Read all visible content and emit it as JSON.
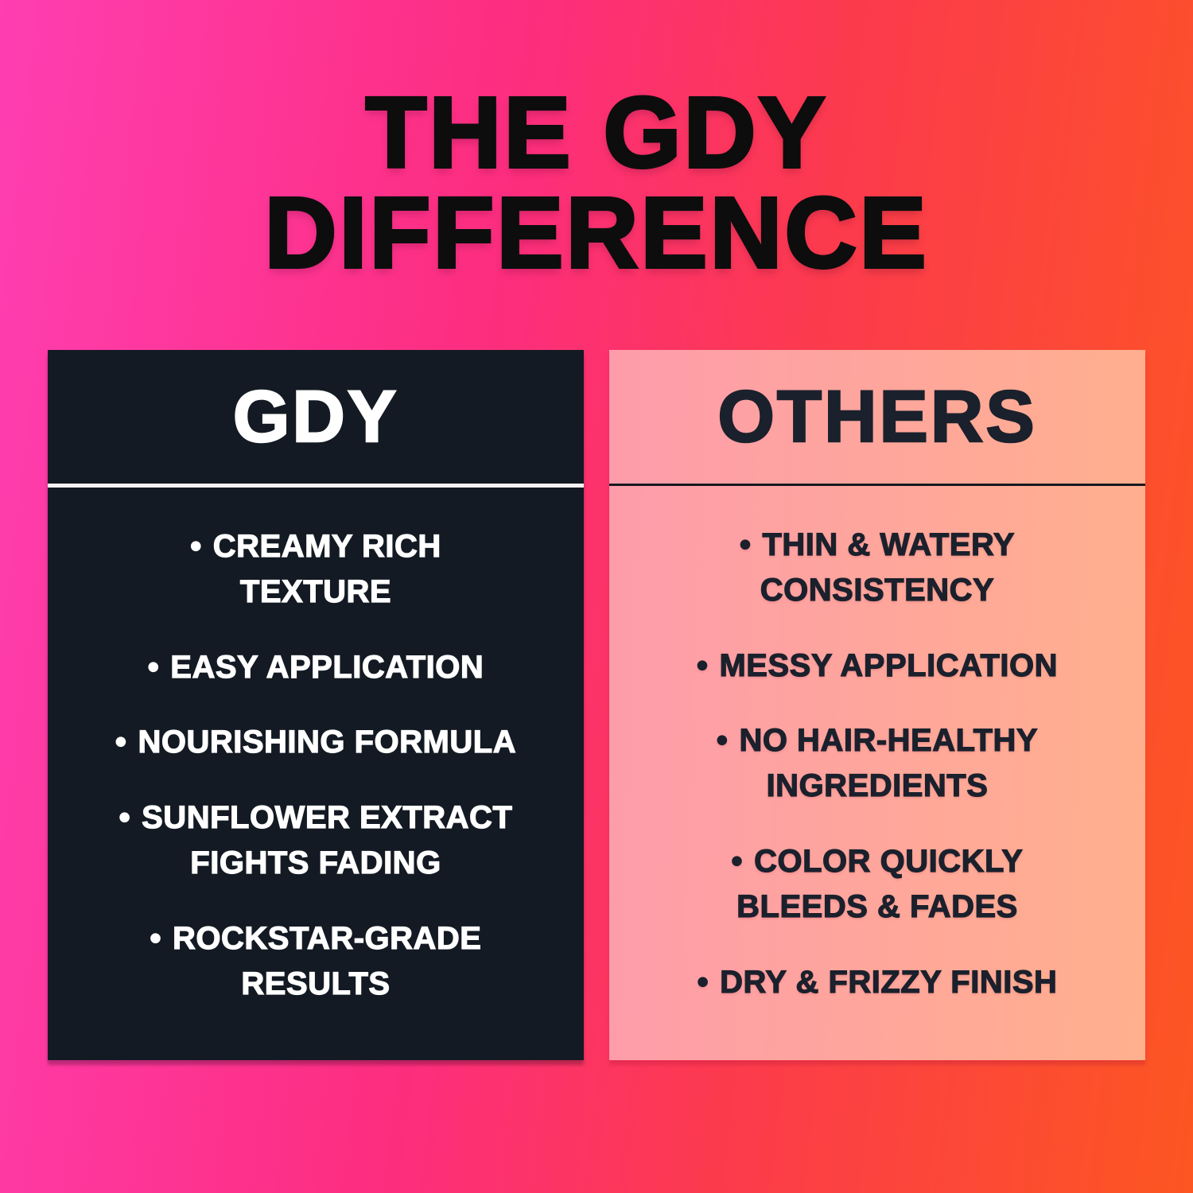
{
  "title": {
    "line1": "THE GDY",
    "line2": "DIFFERENCE"
  },
  "bullet_glyph": "•",
  "columns": {
    "gdy": {
      "heading": "GDY",
      "items": [
        "CREAMY RICH\nTEXTURE",
        "EASY APPLICATION",
        "NOURISHING FORMULA",
        "SUNFLOWER EXTRACT\nFIGHTS FADING",
        "ROCKSTAR-GRADE\nRESULTS"
      ]
    },
    "others": {
      "heading": "OTHERS",
      "items": [
        "THIN & WATERY\nCONSISTENCY",
        "MESSY APPLICATION",
        "NO HAIR-HEALTHY\nINGREDIENTS",
        "COLOR QUICKLY\nBLEEDS & FADES",
        "DRY & FRIZZY FINISH"
      ]
    }
  },
  "colors": {
    "background_pink": "#fe3eb1",
    "background_orange": "#fd5621",
    "title_color": "#0d0d0d",
    "gdy_card_bg": "#141a23",
    "gdy_card_text": "#ffffff",
    "gdy_divider": "#f5f2f3",
    "others_bg_left": "#fe9cab",
    "others_bg_right": "#ffb08d",
    "others_text": "#1b212c",
    "others_divider": "#16181f"
  }
}
